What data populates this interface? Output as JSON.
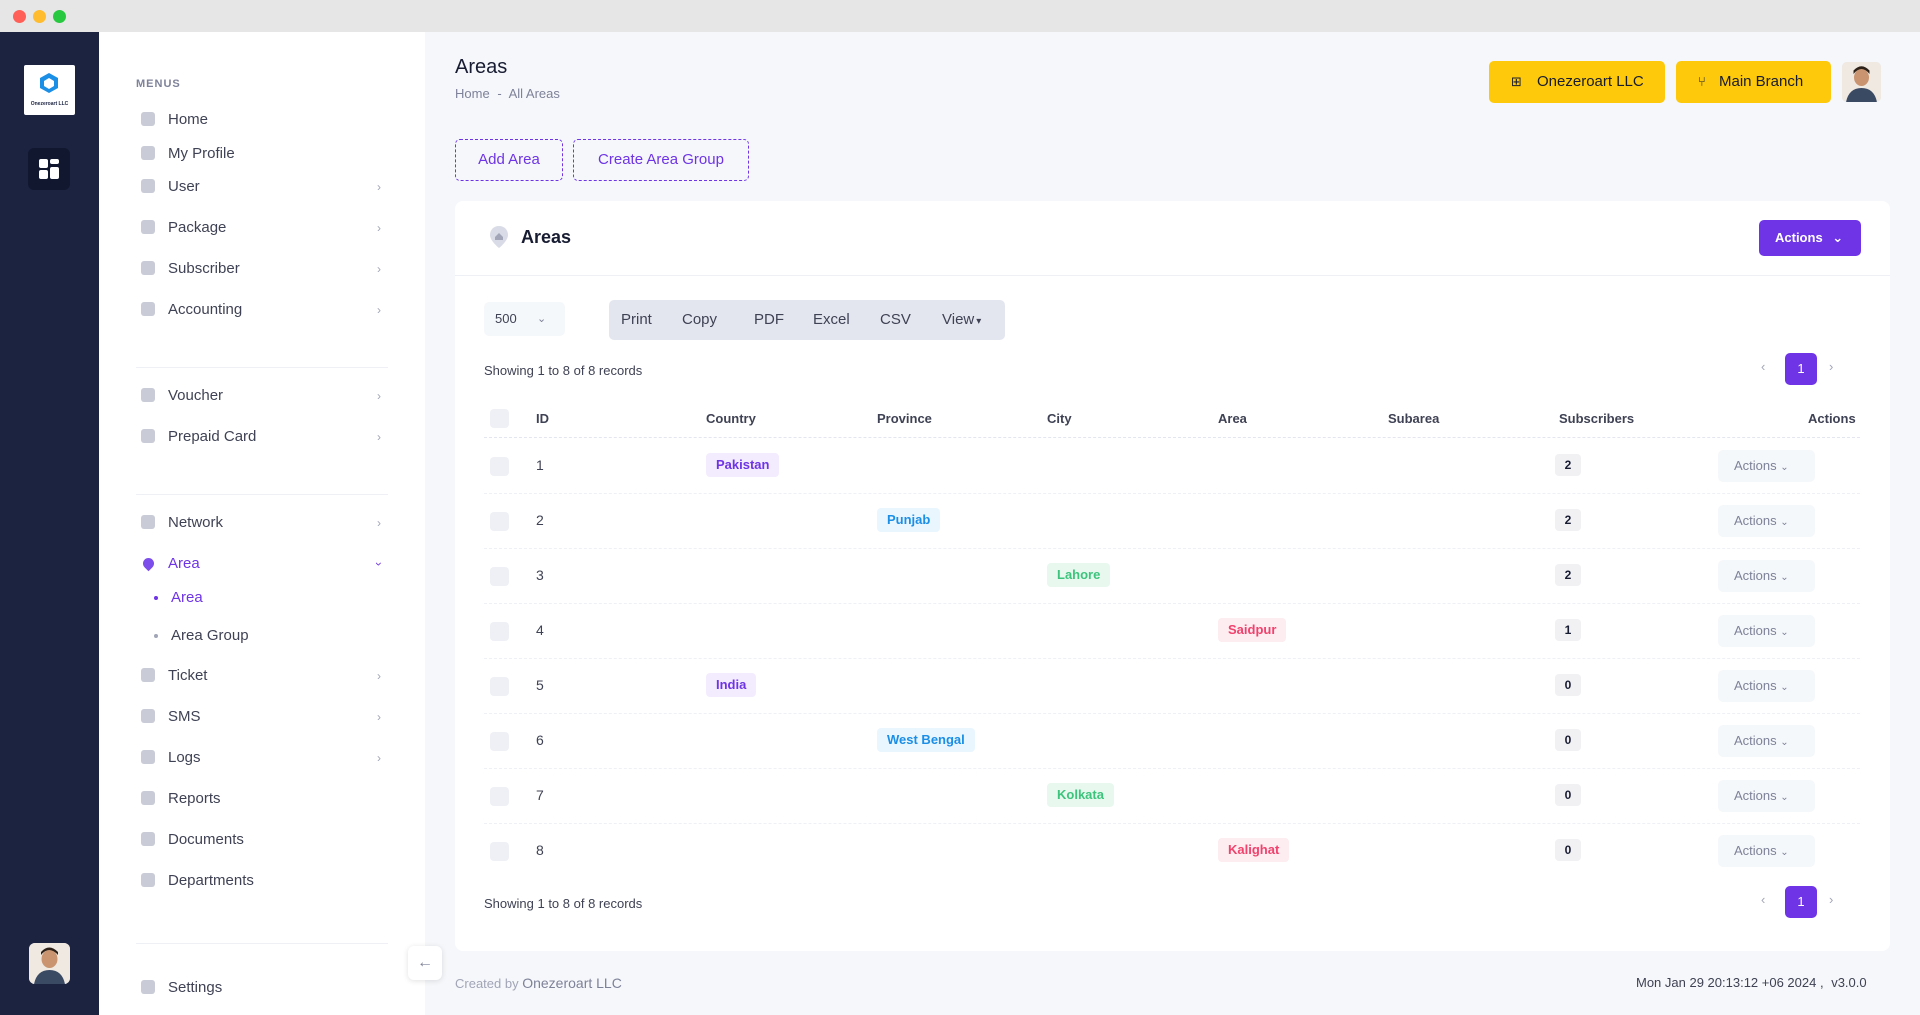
{
  "sidebar": {
    "logo_text": "Onezeroart LLC",
    "menus_title": "MENUS",
    "items": [
      {
        "label": "Home",
        "icon": "dashboard-icon"
      },
      {
        "label": "My Profile",
        "icon": "user-icon"
      },
      {
        "label": "User",
        "icon": "user-icon"
      },
      {
        "label": "Package",
        "icon": "package-icon"
      },
      {
        "label": "Subscriber",
        "icon": "users-icon"
      },
      {
        "label": "Accounting",
        "icon": "calculator-icon"
      },
      {
        "label": "Voucher",
        "icon": "voucher-icon"
      },
      {
        "label": "Prepaid Card",
        "icon": "card-icon"
      },
      {
        "label": "Network",
        "icon": "antenna-icon"
      },
      {
        "label": "Area",
        "icon": "map-pin-icon"
      },
      {
        "label": "Ticket",
        "icon": "ticket-icon"
      },
      {
        "label": "SMS",
        "icon": "message-icon"
      },
      {
        "label": "Logs",
        "icon": "log-icon"
      },
      {
        "label": "Reports",
        "icon": "report-icon"
      },
      {
        "label": "Documents",
        "icon": "document-icon"
      },
      {
        "label": "Departments",
        "icon": "building-icon"
      },
      {
        "label": "Settings",
        "icon": "gear-icon"
      }
    ],
    "area_sub": [
      {
        "label": "Area"
      },
      {
        "label": "Area Group"
      }
    ]
  },
  "header": {
    "title": "Areas",
    "breadcrumb": [
      "Home",
      "-",
      "All Areas"
    ],
    "company_button": "Onezeroart LLC",
    "branch_button": "Main Branch"
  },
  "toolbar": {
    "add_area": "Add Area",
    "create_area_group": "Create Area Group"
  },
  "card": {
    "title": "Areas",
    "actions_label": "Actions",
    "page_size": "500",
    "export_buttons": [
      "Print",
      "Copy",
      "PDF",
      "Excel",
      "CSV",
      "View"
    ],
    "showing_text": "Showing 1 to 8 of 8 records",
    "current_page": "1",
    "columns": [
      "ID",
      "Country",
      "Province",
      "City",
      "Area",
      "Subarea",
      "Subscribers",
      "Actions"
    ],
    "rows": [
      {
        "id": "1",
        "country": "Pakistan",
        "province": "",
        "city": "",
        "area": "",
        "subarea": "",
        "subscribers": "2",
        "action": "Actions"
      },
      {
        "id": "2",
        "country": "",
        "province": "Punjab",
        "city": "",
        "area": "",
        "subarea": "",
        "subscribers": "2",
        "action": "Actions"
      },
      {
        "id": "3",
        "country": "",
        "province": "",
        "city": "Lahore",
        "area": "",
        "subarea": "",
        "subscribers": "2",
        "action": "Actions"
      },
      {
        "id": "4",
        "country": "",
        "province": "",
        "city": "",
        "area": "Saidpur",
        "subarea": "",
        "subscribers": "1",
        "action": "Actions"
      },
      {
        "id": "5",
        "country": "India",
        "province": "",
        "city": "",
        "area": "",
        "subarea": "",
        "subscribers": "0",
        "action": "Actions"
      },
      {
        "id": "6",
        "country": "",
        "province": "West Bengal",
        "city": "",
        "area": "",
        "subarea": "",
        "subscribers": "0",
        "action": "Actions"
      },
      {
        "id": "7",
        "country": "",
        "province": "",
        "city": "Kolkata",
        "area": "",
        "subarea": "",
        "subscribers": "0",
        "action": "Actions"
      },
      {
        "id": "8",
        "country": "",
        "province": "",
        "city": "",
        "area": "Kalighat",
        "subarea": "",
        "subscribers": "0",
        "action": "Actions"
      }
    ]
  },
  "footer": {
    "created_by": "Created by",
    "brand": "Onezeroart LLC",
    "datetime": "Mon Jan 29 20:13:12 +06 2024 ,",
    "version": "v3.0.0"
  },
  "colors": {
    "accent": "#6e34e6",
    "header_button": "#fdc90a",
    "rail": "#1b2340"
  }
}
